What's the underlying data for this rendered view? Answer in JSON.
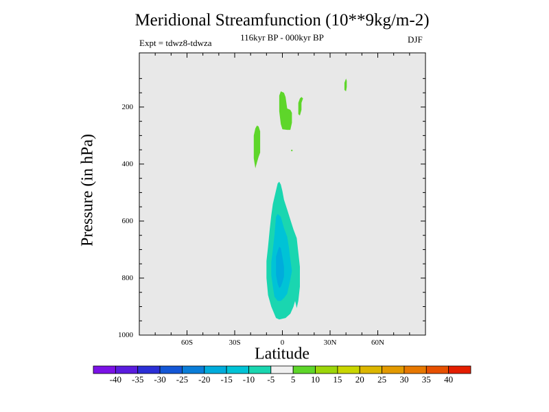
{
  "chart_data": {
    "type": "heatmap",
    "title": "Meridional Streamfunction (10**9kg/m-2)",
    "subtitle": "116kyr BP - 000kyr BP",
    "left_label": "Expt = tdwz8-tdwza",
    "right_label": "DJF",
    "xlabel": "Latitude",
    "ylabel": "Pressure (in hPa)",
    "xlim": [
      -90,
      90
    ],
    "ylim": [
      1000,
      10
    ],
    "x_ticks": [
      {
        "value": -60,
        "label": "60S"
      },
      {
        "value": -30,
        "label": "30S"
      },
      {
        "value": 0,
        "label": "0"
      },
      {
        "value": 30,
        "label": "30N"
      },
      {
        "value": 60,
        "label": "60N"
      }
    ],
    "y_ticks": [
      {
        "value": 200,
        "label": "200"
      },
      {
        "value": 400,
        "label": "400"
      },
      {
        "value": 600,
        "label": "600"
      },
      {
        "value": 800,
        "label": "800"
      },
      {
        "value": 1000,
        "label": "1000"
      }
    ],
    "background_value_range": [
      -5,
      5
    ],
    "background_color": "#e8e8e8",
    "contour_regions": [
      {
        "level": "5 to 10",
        "color": "#5ed62a",
        "polygon": [
          [
            -2,
            160
          ],
          [
            -1,
            145
          ],
          [
            1,
            150
          ],
          [
            2,
            165
          ],
          [
            3,
            205
          ],
          [
            5,
            210
          ],
          [
            6,
            220
          ],
          [
            6,
            255
          ],
          [
            5,
            280
          ],
          [
            3,
            280
          ],
          [
            0,
            278
          ],
          [
            -1,
            260
          ],
          [
            -2,
            215
          ],
          [
            -2,
            190
          ]
        ]
      },
      {
        "level": "5 to 10",
        "color": "#5ed62a",
        "polygon": [
          [
            10,
            185
          ],
          [
            11,
            170
          ],
          [
            12,
            165
          ],
          [
            13,
            170
          ],
          [
            12,
            185
          ],
          [
            12,
            210
          ],
          [
            11,
            230
          ],
          [
            10,
            225
          ],
          [
            10,
            200
          ]
        ]
      },
      {
        "level": "5 to 10",
        "color": "#5ed62a",
        "polygon": [
          [
            -17,
            275
          ],
          [
            -16,
            265
          ],
          [
            -15,
            268
          ],
          [
            -14,
            285
          ],
          [
            -14,
            320
          ],
          [
            -14,
            360
          ],
          [
            -15,
            375
          ],
          [
            -16,
            395
          ],
          [
            -17,
            415
          ],
          [
            -18,
            380
          ],
          [
            -18,
            340
          ],
          [
            -18,
            300
          ]
        ]
      },
      {
        "level": "5 to 10",
        "color": "#5ed62a",
        "polygon": [
          [
            39,
            115
          ],
          [
            40,
            100
          ],
          [
            40.5,
            108
          ],
          [
            40.5,
            130
          ],
          [
            40,
            145
          ],
          [
            39,
            140
          ],
          [
            39,
            125
          ]
        ]
      },
      {
        "level": "-10 to -5",
        "color": "#1ad6b0",
        "polygon": [
          [
            -3,
            468
          ],
          [
            -2,
            462
          ],
          [
            -1,
            472
          ],
          [
            0,
            495
          ],
          [
            1,
            525
          ],
          [
            3,
            560
          ],
          [
            5,
            595
          ],
          [
            7,
            630
          ],
          [
            9,
            660
          ],
          [
            10,
            710
          ],
          [
            11,
            760
          ],
          [
            11,
            830
          ],
          [
            10,
            880
          ],
          [
            9,
            905
          ],
          [
            8,
            880
          ],
          [
            7,
            900
          ],
          [
            5,
            925
          ],
          [
            2,
            940
          ],
          [
            -2,
            945
          ],
          [
            -4,
            940
          ],
          [
            -7,
            900
          ],
          [
            -9,
            860
          ],
          [
            -10,
            800
          ],
          [
            -10,
            740
          ],
          [
            -9,
            690
          ],
          [
            -8,
            630
          ],
          [
            -7,
            580
          ],
          [
            -6,
            540
          ]
        ]
      },
      {
        "level": "-15 to -10",
        "color": "#00c3d6",
        "polygon": [
          [
            -4,
            585
          ],
          [
            -3,
            575
          ],
          [
            -1,
            585
          ],
          [
            1,
            625
          ],
          [
            3,
            655
          ],
          [
            4,
            690
          ],
          [
            5,
            735
          ],
          [
            6,
            775
          ],
          [
            5,
            805
          ],
          [
            4,
            830
          ],
          [
            3,
            855
          ],
          [
            1,
            870
          ],
          [
            -1,
            880
          ],
          [
            -3,
            880
          ],
          [
            -5,
            865
          ],
          [
            -6,
            830
          ],
          [
            -7,
            790
          ],
          [
            -7,
            745
          ],
          [
            -6,
            700
          ],
          [
            -5,
            650
          ]
        ]
      },
      {
        "level": "-20 to -15",
        "color": "#00acdc",
        "polygon": [
          [
            -3,
            705
          ],
          [
            -2,
            690
          ],
          [
            -1,
            695
          ],
          [
            0,
            725
          ],
          [
            1,
            760
          ],
          [
            1,
            795
          ],
          [
            0,
            815
          ],
          [
            -1,
            830
          ],
          [
            -2,
            835
          ],
          [
            -3,
            820
          ],
          [
            -4,
            790
          ],
          [
            -4,
            755
          ],
          [
            -4,
            725
          ]
        ]
      }
    ],
    "colorbar": {
      "colors": [
        "#7b12e6",
        "#5a1cde",
        "#2b2fd6",
        "#1457d6",
        "#0a7dd8",
        "#00acdc",
        "#00c3d6",
        "#1ad6b0",
        "#f0f0f0",
        "#5ed62a",
        "#9cd60a",
        "#c9d600",
        "#dcb600",
        "#e39a00",
        "#e77800",
        "#e75000",
        "#e41e00"
      ],
      "labels": [
        "-40",
        "-35",
        "-30",
        "-25",
        "-20",
        "-15",
        "-10",
        "-5",
        "5",
        "10",
        "15",
        "20",
        "25",
        "30",
        "35",
        "40"
      ]
    }
  }
}
